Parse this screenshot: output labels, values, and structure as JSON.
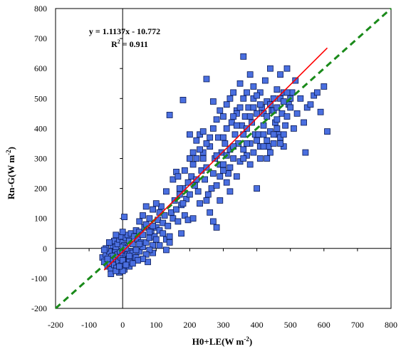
{
  "chart_data": {
    "type": "scatter",
    "xlabel": "H0+LE(W m",
    "xlabel_sup": "-2",
    "xlabel_close": ")",
    "ylabel": "Rn-G(W m",
    "ylabel_sup": "-2",
    "ylabel_close": ")",
    "xlim": [
      -200,
      800
    ],
    "ylim": [
      -200,
      800
    ],
    "xticks": [
      -200,
      -100,
      0,
      100,
      200,
      300,
      400,
      500,
      600,
      700,
      800
    ],
    "yticks": [
      -200,
      -100,
      0,
      100,
      200,
      300,
      400,
      500,
      600,
      700,
      800
    ],
    "regression": {
      "equation": "y = 1.1137x - 10.772",
      "r2_prefix": "R",
      "r2_sup": "2",
      "r2_value": " = 0.911",
      "slope": 1.1137,
      "intercept": -10.772,
      "x_range": [
        -55,
        610
      ],
      "color": "#ff0000"
    },
    "one_to_one": {
      "x_range": [
        -200,
        800
      ],
      "color": "#1a8a1a"
    },
    "grid": false,
    "marker_color": "#4a6fe0",
    "marker_edge": "#0a1a55",
    "points": [
      [
        -60,
        -30
      ],
      [
        -55,
        -45
      ],
      [
        -50,
        -20
      ],
      [
        -45,
        -60
      ],
      [
        -40,
        -10
      ],
      [
        -38,
        -50
      ],
      [
        -35,
        -70
      ],
      [
        -30,
        -25
      ],
      [
        -28,
        -40
      ],
      [
        -25,
        -55
      ],
      [
        -22,
        -5
      ],
      [
        -20,
        -35
      ],
      [
        -18,
        -65
      ],
      [
        -15,
        -20
      ],
      [
        -12,
        -45
      ],
      [
        -10,
        -80
      ],
      [
        -8,
        -10
      ],
      [
        -5,
        -30
      ],
      [
        -3,
        -55
      ],
      [
        0,
        -15
      ],
      [
        2,
        -40
      ],
      [
        5,
        -70
      ],
      [
        8,
        -5
      ],
      [
        10,
        -25
      ],
      [
        12,
        -50
      ],
      [
        15,
        -20
      ],
      [
        18,
        -35
      ],
      [
        20,
        -60
      ],
      [
        22,
        -10
      ],
      [
        25,
        -30
      ],
      [
        -30,
        10
      ],
      [
        -25,
        25
      ],
      [
        -20,
        5
      ],
      [
        -15,
        15
      ],
      [
        -10,
        30
      ],
      [
        -5,
        40
      ],
      [
        0,
        20
      ],
      [
        5,
        10
      ],
      [
        10,
        35
      ],
      [
        15,
        45
      ],
      [
        20,
        25
      ],
      [
        25,
        50
      ],
      [
        30,
        15
      ],
      [
        35,
        40
      ],
      [
        40,
        60
      ],
      [
        45,
        30
      ],
      [
        50,
        55
      ],
      [
        55,
        20
      ],
      [
        60,
        45
      ],
      [
        65,
        70
      ],
      [
        -40,
        20
      ],
      [
        -50,
        0
      ],
      [
        -35,
        -85
      ],
      [
        0,
        -75
      ],
      [
        20,
        -45
      ],
      [
        30,
        -15
      ],
      [
        40,
        -30
      ],
      [
        0,
        5
      ],
      [
        10,
        0
      ],
      [
        -20,
        45
      ],
      [
        5,
        105
      ],
      [
        0,
        55
      ],
      [
        50,
        -10
      ],
      [
        60,
        5
      ],
      [
        70,
        20
      ],
      [
        75,
        -45
      ],
      [
        80,
        35
      ],
      [
        85,
        60
      ],
      [
        90,
        10
      ],
      [
        95,
        40
      ],
      [
        50,
        90
      ],
      [
        60,
        110
      ],
      [
        70,
        80
      ],
      [
        80,
        100
      ],
      [
        90,
        130
      ],
      [
        100,
        70
      ],
      [
        105,
        95
      ],
      [
        110,
        120
      ],
      [
        115,
        140
      ],
      [
        120,
        85
      ],
      [
        70,
        140
      ],
      [
        80,
        55
      ],
      [
        90,
        75
      ],
      [
        100,
        150
      ],
      [
        110,
        60
      ],
      [
        125,
        110
      ],
      [
        130,
        30
      ],
      [
        135,
        75
      ],
      [
        140,
        20
      ],
      [
        145,
        120
      ],
      [
        150,
        100
      ],
      [
        155,
        160
      ],
      [
        160,
        130
      ],
      [
        165,
        90
      ],
      [
        170,
        180
      ],
      [
        175,
        145
      ],
      [
        180,
        200
      ],
      [
        185,
        110
      ],
      [
        190,
        165
      ],
      [
        195,
        220
      ],
      [
        130,
        190
      ],
      [
        140,
        445
      ],
      [
        150,
        230
      ],
      [
        160,
        255
      ],
      [
        165,
        240
      ],
      [
        170,
        200
      ],
      [
        175,
        50
      ],
      [
        180,
        150
      ],
      [
        185,
        260
      ],
      [
        195,
        95
      ],
      [
        200,
        180
      ],
      [
        205,
        240
      ],
      [
        210,
        280
      ],
      [
        215,
        210
      ],
      [
        220,
        300
      ],
      [
        225,
        190
      ],
      [
        230,
        150
      ],
      [
        235,
        260
      ],
      [
        240,
        320
      ],
      [
        245,
        230
      ],
      [
        250,
        270
      ],
      [
        255,
        180
      ],
      [
        260,
        340
      ],
      [
        265,
        200
      ],
      [
        270,
        250
      ],
      [
        275,
        300
      ],
      [
        280,
        210
      ],
      [
        285,
        370
      ],
      [
        290,
        280
      ],
      [
        295,
        320
      ],
      [
        200,
        300
      ],
      [
        210,
        100
      ],
      [
        220,
        230
      ],
      [
        230,
        380
      ],
      [
        240,
        390
      ],
      [
        250,
        160
      ],
      [
        260,
        120
      ],
      [
        270,
        90
      ],
      [
        280,
        70
      ],
      [
        290,
        240
      ],
      [
        300,
        280
      ],
      [
        305,
        350
      ],
      [
        310,
        400
      ],
      [
        315,
        250
      ],
      [
        320,
        330
      ],
      [
        325,
        420
      ],
      [
        330,
        300
      ],
      [
        335,
        380
      ],
      [
        340,
        460
      ],
      [
        345,
        350
      ],
      [
        350,
        290
      ],
      [
        355,
        410
      ],
      [
        360,
        380
      ],
      [
        365,
        440
      ],
      [
        370,
        310
      ],
      [
        375,
        470
      ],
      [
        380,
        350
      ],
      [
        385,
        420
      ],
      [
        390,
        500
      ],
      [
        395,
        380
      ],
      [
        300,
        440
      ],
      [
        310,
        480
      ],
      [
        320,
        500
      ],
      [
        330,
        520
      ],
      [
        340,
        450
      ],
      [
        350,
        550
      ],
      [
        360,
        640
      ],
      [
        370,
        520
      ],
      [
        380,
        580
      ],
      [
        390,
        540
      ],
      [
        400,
        450
      ],
      [
        405,
        380
      ],
      [
        410,
        520
      ],
      [
        415,
        470
      ],
      [
        420,
        410
      ],
      [
        425,
        560
      ],
      [
        430,
        490
      ],
      [
        435,
        340
      ],
      [
        440,
        600
      ],
      [
        445,
        460
      ],
      [
        450,
        500
      ],
      [
        455,
        420
      ],
      [
        460,
        530
      ],
      [
        465,
        380
      ],
      [
        470,
        580
      ],
      [
        475,
        450
      ],
      [
        480,
        520
      ],
      [
        485,
        410
      ],
      [
        490,
        600
      ],
      [
        495,
        480
      ],
      [
        400,
        200
      ],
      [
        410,
        340
      ],
      [
        420,
        380
      ],
      [
        430,
        300
      ],
      [
        440,
        390
      ],
      [
        450,
        350
      ],
      [
        460,
        430
      ],
      [
        470,
        370
      ],
      [
        480,
        340
      ],
      [
        490,
        440
      ],
      [
        500,
        470
      ],
      [
        505,
        520
      ],
      [
        510,
        400
      ],
      [
        515,
        560
      ],
      [
        520,
        450
      ],
      [
        530,
        500
      ],
      [
        540,
        420
      ],
      [
        545,
        320
      ],
      [
        550,
        470
      ],
      [
        560,
        480
      ],
      [
        570,
        510
      ],
      [
        580,
        520
      ],
      [
        590,
        455
      ],
      [
        600,
        540
      ],
      [
        610,
        390
      ],
      [
        250,
        565
      ],
      [
        270,
        490
      ],
      [
        280,
        310
      ],
      [
        290,
        160
      ],
      [
        300,
        260
      ],
      [
        310,
        220
      ],
      [
        320,
        190
      ],
      [
        330,
        340
      ],
      [
        340,
        240
      ],
      [
        360,
        300
      ],
      [
        180,
        495
      ],
      [
        200,
        380
      ],
      [
        210,
        320
      ],
      [
        220,
        360
      ],
      [
        230,
        330
      ],
      [
        240,
        300
      ],
      [
        250,
        350
      ],
      [
        260,
        370
      ],
      [
        270,
        400
      ],
      [
        280,
        430
      ],
      [
        290,
        460
      ],
      [
        300,
        370
      ],
      [
        310,
        310
      ],
      [
        320,
        270
      ],
      [
        330,
        440
      ],
      [
        340,
        410
      ],
      [
        350,
        470
      ],
      [
        360,
        500
      ],
      [
        370,
        400
      ],
      [
        380,
        440
      ],
      [
        390,
        470
      ],
      [
        400,
        510
      ],
      [
        410,
        480
      ],
      [
        420,
        450
      ],
      [
        430,
        440
      ],
      [
        440,
        480
      ],
      [
        450,
        460
      ],
      [
        460,
        470
      ],
      [
        470,
        500
      ],
      [
        480,
        490
      ],
      [
        490,
        520
      ],
      [
        500,
        500
      ],
      [
        360,
        330
      ],
      [
        370,
        350
      ],
      [
        380,
        280
      ],
      [
        390,
        320
      ],
      [
        400,
        360
      ],
      [
        410,
        300
      ],
      [
        420,
        340
      ],
      [
        430,
        360
      ],
      [
        440,
        320
      ],
      [
        450,
        380
      ],
      [
        460,
        400
      ],
      [
        470,
        350
      ],
      [
        480,
        380
      ],
      [
        100,
        30
      ],
      [
        110,
        10
      ],
      [
        120,
        50
      ],
      [
        130,
        -5
      ],
      [
        140,
        40
      ],
      [
        90,
        -15
      ],
      [
        80,
        -5
      ],
      [
        70,
        -20
      ],
      [
        60,
        -35
      ],
      [
        45,
        -40
      ],
      [
        -20,
        -75
      ],
      [
        -10,
        -60
      ],
      [
        0,
        -40
      ],
      [
        10,
        -55
      ],
      [
        20,
        -25
      ],
      [
        30,
        -50
      ],
      [
        40,
        -5
      ],
      [
        50,
        15
      ],
      [
        -45,
        -35
      ],
      [
        -55,
        -5
      ]
    ]
  }
}
